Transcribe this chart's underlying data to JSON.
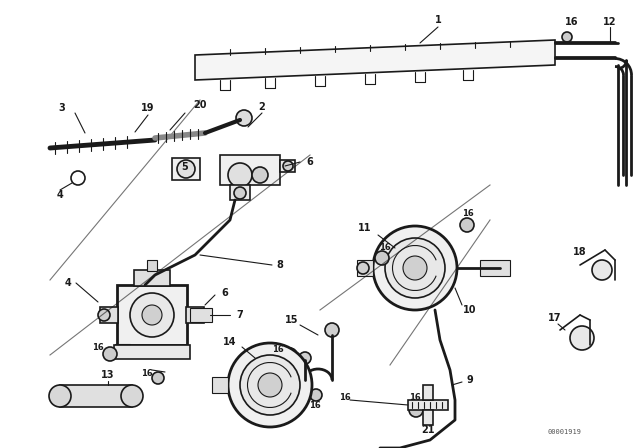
{
  "bg_color": "#ffffff",
  "diagram_color": "#1a1a1a",
  "watermark": "00001919",
  "fig_width": 6.4,
  "fig_height": 4.48,
  "dpi": 100
}
